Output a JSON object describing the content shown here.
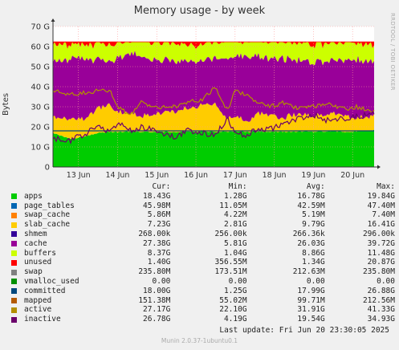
{
  "chart_data": {
    "type": "area",
    "title": "Memory usage - by week",
    "ylabel": "Bytes",
    "side_label": "RRDTOOL / TOBI OETIKER",
    "ylim": [
      0,
      70
    ],
    "y_ticks": [
      "0",
      "10 G",
      "20 G",
      "30 G",
      "40 G",
      "50 G",
      "60 G",
      "70 G"
    ],
    "x_ticks": [
      "13 Jun",
      "14 Jun",
      "15 Jun",
      "16 Jun",
      "17 Jun",
      "18 Jun",
      "19 Jun",
      "20 Jun"
    ],
    "x_range_days": [
      12.35,
      20.55
    ],
    "x_tick_days": [
      13,
      14,
      15,
      16,
      17,
      18,
      19,
      20
    ],
    "grid": true,
    "legend_position": "bottom",
    "column_headers": [
      "Cur:",
      "Min:",
      "Avg:",
      "Max:"
    ],
    "series": [
      {
        "name": "apps",
        "color": "#00cc00",
        "cur": "18.43G",
        "min": "1.28G",
        "avg": "16.78G",
        "max": "19.84G"
      },
      {
        "name": "page_tables",
        "color": "#0066b3",
        "cur": "45.98M",
        "min": "11.05M",
        "avg": "42.59M",
        "max": "47.40M"
      },
      {
        "name": "swap_cache",
        "color": "#ff8000",
        "cur": "5.86M",
        "min": "4.22M",
        "avg": "5.19M",
        "max": "7.40M"
      },
      {
        "name": "slab_cache",
        "color": "#ffcc00",
        "cur": "7.23G",
        "min": "2.81G",
        "avg": "9.79G",
        "max": "16.41G"
      },
      {
        "name": "shmem",
        "color": "#330099",
        "cur": "268.00k",
        "min": "256.00k",
        "avg": "266.36k",
        "max": "296.00k"
      },
      {
        "name": "cache",
        "color": "#990099",
        "cur": "27.38G",
        "min": "5.81G",
        "avg": "26.03G",
        "max": "39.72G"
      },
      {
        "name": "buffers",
        "color": "#ccff00",
        "cur": "8.37G",
        "min": "1.04G",
        "avg": "8.86G",
        "max": "11.48G"
      },
      {
        "name": "unused",
        "color": "#ff0000",
        "cur": "1.40G",
        "min": "356.55M",
        "avg": "1.34G",
        "max": "20.87G"
      },
      {
        "name": "swap",
        "color": "#808080",
        "cur": "235.80M",
        "min": "173.51M",
        "avg": "212.63M",
        "max": "235.80M"
      },
      {
        "name": "vmalloc_used",
        "color": "#008f00",
        "cur": "0.00",
        "min": "0.00",
        "avg": "0.00",
        "max": "0.00"
      },
      {
        "name": "committed",
        "color": "#00487d",
        "cur": "18.00G",
        "min": "1.25G",
        "avg": "17.99G",
        "max": "26.88G"
      },
      {
        "name": "mapped",
        "color": "#b35a00",
        "cur": "151.38M",
        "min": "55.02M",
        "avg": "99.71M",
        "max": "212.56M"
      },
      {
        "name": "active",
        "color": "#b38f00",
        "cur": "27.17G",
        "min": "22.10G",
        "avg": "31.91G",
        "max": "41.33G"
      },
      {
        "name": "inactive",
        "color": "#6b006b",
        "cur": "26.78G",
        "min": "4.19G",
        "avg": "19.54G",
        "max": "34.93G"
      }
    ],
    "approx_profile": {
      "days": [
        12.35,
        12.8,
        13.1,
        13.5,
        13.8,
        14.0,
        14.3,
        14.6,
        15.0,
        15.4,
        15.8,
        16.2,
        16.5,
        16.8,
        17.0,
        17.3,
        17.6,
        17.9,
        18.2,
        18.6,
        19.0,
        19.4,
        19.8,
        20.1,
        20.55
      ],
      "apps": [
        17,
        14,
        15,
        17,
        17.5,
        17.5,
        17.6,
        17.6,
        17.5,
        17.6,
        17.5,
        17.7,
        17.6,
        17.6,
        17.8,
        17.5,
        17.7,
        17.6,
        17.5,
        17.6,
        17.7,
        17.8,
        17.6,
        17.7,
        18.4
      ],
      "slab_cache": [
        8,
        10,
        9,
        12,
        14,
        10,
        9,
        8,
        9,
        10,
        12,
        13,
        14,
        6,
        8,
        5,
        9,
        8,
        7,
        9,
        8,
        9,
        8,
        7,
        7.2
      ],
      "cache": [
        28,
        30,
        31,
        24,
        22,
        27,
        30,
        30,
        27,
        25,
        24,
        22,
        23,
        30,
        29,
        33,
        28,
        28,
        30,
        27,
        27,
        26,
        28,
        29,
        27.4
      ],
      "buffers": [
        9,
        7,
        7,
        8,
        8,
        8,
        7,
        8,
        9,
        9,
        8,
        8,
        8,
        9,
        8,
        8,
        9,
        9,
        9,
        9,
        9,
        9,
        9,
        9,
        8.4
      ],
      "committed": [
        18,
        18,
        18,
        18,
        18,
        18,
        18,
        18,
        18,
        18,
        18,
        18,
        18,
        18,
        18,
        18,
        18,
        18,
        18,
        18,
        18,
        18,
        18,
        18,
        18
      ],
      "active": [
        38,
        36,
        37,
        38,
        38,
        30,
        26,
        32,
        30,
        30,
        32,
        34,
        40,
        28,
        38,
        36,
        32,
        30,
        32,
        29,
        30,
        31,
        29,
        30,
        27.2
      ],
      "inactive": [
        14,
        13,
        16,
        20,
        18,
        22,
        18,
        20,
        18,
        15,
        18,
        17,
        16,
        24,
        17,
        16,
        19,
        19,
        21,
        24,
        26,
        23,
        24,
        25,
        26.8
      ]
    }
  },
  "footer": {
    "last_update": "Last update: Fri Jun 20 23:30:05 2025",
    "version": "Munin 2.0.37-1ubuntu0.1"
  }
}
